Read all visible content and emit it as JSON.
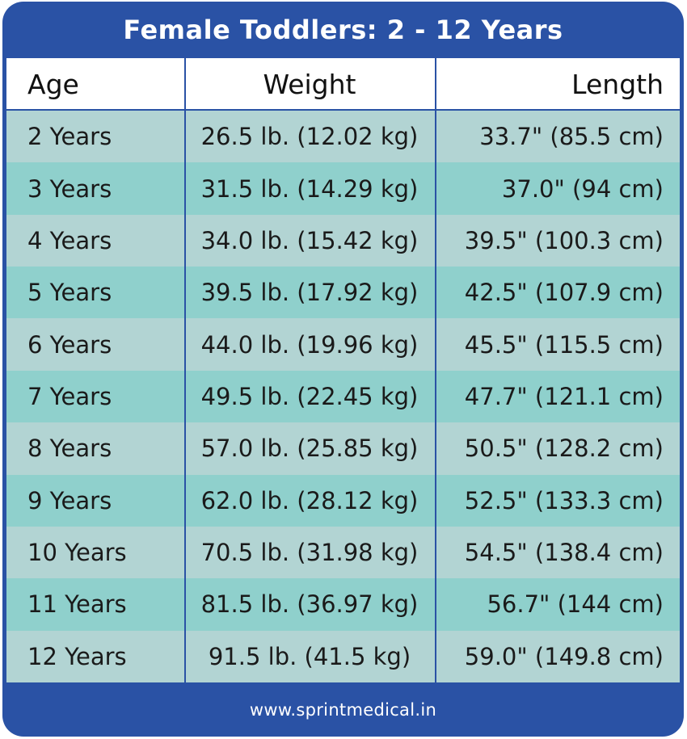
{
  "title": "Female Toddlers: 2 - 12 Years",
  "table": {
    "headers": [
      "Age",
      "Weight",
      "Length"
    ],
    "rows": [
      [
        "2 Years",
        "26.5 lb. (12.02 kg)",
        "33.7\" (85.5 cm)"
      ],
      [
        "3 Years",
        "31.5 lb. (14.29 kg)",
        "37.0\" (94 cm)"
      ],
      [
        "4 Years",
        "34.0 lb. (15.42 kg)",
        "39.5\" (100.3 cm)"
      ],
      [
        "5 Years",
        "39.5 lb. (17.92 kg)",
        "42.5\" (107.9 cm)"
      ],
      [
        "6 Years",
        "44.0 lb. (19.96 kg)",
        "45.5\" (115.5 cm)"
      ],
      [
        "7 Years",
        "49.5 lb. (22.45 kg)",
        "47.7\" (121.1 cm)"
      ],
      [
        "8 Years",
        "57.0 lb. (25.85 kg)",
        "50.5\" (128.2 cm)"
      ],
      [
        "9 Years",
        "62.0 lb. (28.12 kg)",
        "52.5\" (133.3 cm)"
      ],
      [
        "10 Years",
        "70.5 lb. (31.98 kg)",
        "54.5\" (138.4 cm)"
      ],
      [
        "11 Years",
        "81.5 lb. (36.97 kg)",
        "56.7\" (144 cm)"
      ],
      [
        "12 Years",
        "91.5 lb. (41.5 kg)",
        "59.0\" (149.8 cm)"
      ]
    ]
  },
  "footer": "www.sprintmedical.in",
  "colors": {
    "frame": "#2a52a5",
    "row_light": "#b2d4d3",
    "row_dark": "#8fd0cc",
    "header_bg": "#ffffff"
  }
}
